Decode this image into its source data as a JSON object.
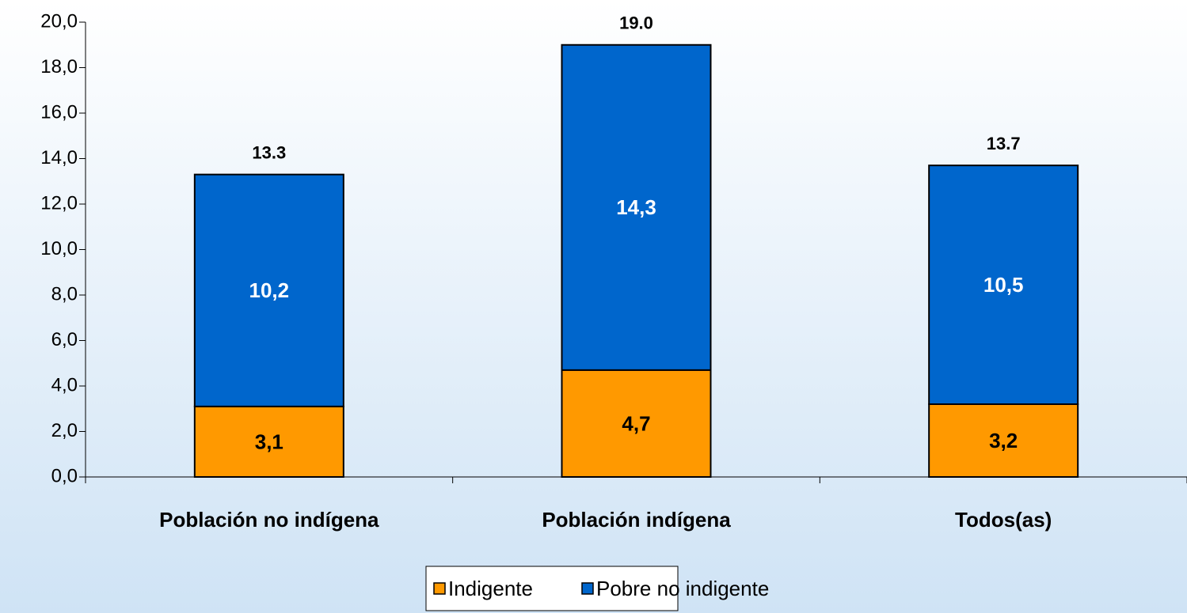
{
  "chart_data": {
    "type": "stacked_bar",
    "categories": [
      "Población no indígena",
      "Población indígena",
      "Todos(as)"
    ],
    "series": [
      {
        "name": "Indigente",
        "color": "#ff9900",
        "label_color": "#000000",
        "values": [
          3.1,
          4.7,
          3.2
        ],
        "value_labels": [
          "3,1",
          "4,7",
          "3,2"
        ]
      },
      {
        "name": "Pobre no indigente",
        "color": "#0066cc",
        "label_color": "#ffffff",
        "values": [
          10.2,
          14.3,
          10.5
        ],
        "value_labels": [
          "10,2",
          "14,3",
          "10,5"
        ]
      }
    ],
    "totals": [
      13.3,
      19.0,
      13.7
    ],
    "total_labels": [
      "13.3",
      "19.0",
      "13.7"
    ],
    "ylim": [
      0,
      20
    ],
    "yticks": [
      {
        "value": 0,
        "label": "0,0"
      },
      {
        "value": 2,
        "label": "2,0"
      },
      {
        "value": 4,
        "label": "4,0"
      },
      {
        "value": 6,
        "label": "6,0"
      },
      {
        "value": 8,
        "label": "8,0"
      },
      {
        "value": 10,
        "label": "10,0"
      },
      {
        "value": 12,
        "label": "12,0"
      },
      {
        "value": 14,
        "label": "14,0"
      },
      {
        "value": 16,
        "label": "16,0"
      },
      {
        "value": 18,
        "label": "18,0"
      },
      {
        "value": 20,
        "label": "20,0"
      }
    ],
    "grid": false,
    "legend": "bottom"
  }
}
